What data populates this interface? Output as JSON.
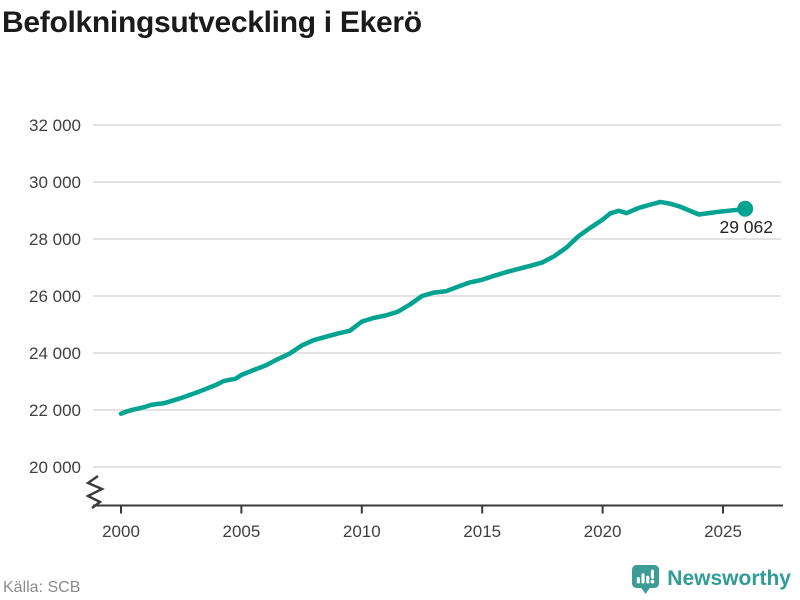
{
  "header": {
    "title": "Befolkningsutveckling i Ekerö"
  },
  "colors": {
    "line": "#00a290",
    "grid": "#e3e3e3",
    "axis": "#3a3a3a",
    "tick_text": "#3f3f3f",
    "annotation_text": "#232323",
    "source_text": "#8b8b8b",
    "brand_teal": "#3d9c95",
    "brand_text": "#2f9d96"
  },
  "chart_data": {
    "type": "line",
    "title": "Befolkningsutveckling i Ekerö",
    "xlabel": "",
    "ylabel": "",
    "grid": "horizontal",
    "axis_break": true,
    "legend_position": "none",
    "xlim": [
      1998.8,
      2027.4
    ],
    "ylim": [
      20000,
      32000
    ],
    "y_ticks": [
      "32 000",
      "30 000",
      "28 000",
      "26 000",
      "24 000",
      "22 000",
      "20 000"
    ],
    "y_tick_values": [
      32000,
      30000,
      28000,
      26000,
      24000,
      22000,
      20000
    ],
    "x_ticks": [
      "2000",
      "2005",
      "2010",
      "2015",
      "2020",
      "2025"
    ],
    "x_tick_values": [
      2000,
      2005,
      2010,
      2015,
      2020,
      2025
    ],
    "end_label": "29 062",
    "end_value": 29062,
    "x": [
      2000.0,
      2000.25,
      2000.5,
      2000.75,
      2001.0,
      2001.25,
      2001.5,
      2001.75,
      2002.0,
      2002.5,
      2003.0,
      2003.5,
      2004.0,
      2004.25,
      2004.5,
      2004.75,
      2005.0,
      2005.5,
      2006.0,
      2006.5,
      2007.0,
      2007.5,
      2008.0,
      2008.5,
      2009.0,
      2009.5,
      2010.0,
      2010.5,
      2011.0,
      2011.5,
      2012.0,
      2012.5,
      2013.0,
      2013.5,
      2014.0,
      2014.5,
      2015.0,
      2015.5,
      2016.0,
      2016.5,
      2017.0,
      2017.5,
      2018.0,
      2018.5,
      2019.0,
      2019.5,
      2020.0,
      2020.33,
      2020.67,
      2021.0,
      2021.5,
      2022.0,
      2022.4,
      2022.8,
      2023.2,
      2023.6,
      2024.0,
      2024.4,
      2024.8,
      2025.2,
      2025.6,
      2025.92
    ],
    "series": [
      {
        "name": "Befolkning i Ekerö",
        "values": [
          21870,
          21950,
          22010,
          22060,
          22110,
          22180,
          22210,
          22230,
          22290,
          22420,
          22570,
          22730,
          22900,
          23010,
          23060,
          23090,
          23230,
          23400,
          23560,
          23780,
          23980,
          24260,
          24450,
          24570,
          24680,
          24780,
          25100,
          25230,
          25320,
          25450,
          25700,
          26000,
          26120,
          26170,
          26330,
          26480,
          26570,
          26710,
          26840,
          26950,
          27060,
          27180,
          27400,
          27700,
          28100,
          28400,
          28680,
          28900,
          28990,
          28910,
          29090,
          29210,
          29300,
          29240,
          29140,
          29000,
          28860,
          28910,
          28950,
          28990,
          29020,
          29062
        ]
      }
    ]
  },
  "footer": {
    "source": "Källa: SCB",
    "brand": "Newsworthy"
  }
}
